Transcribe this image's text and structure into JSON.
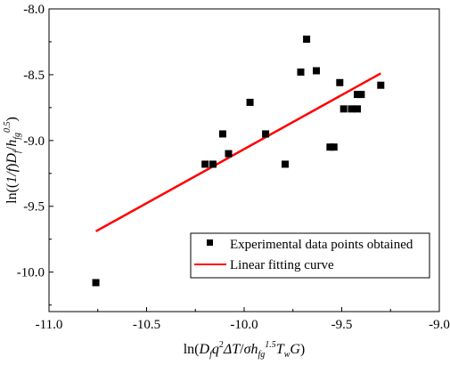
{
  "chart_data": {
    "type": "scatter",
    "xlabel_html": "ln(D<tspan font-style='italic'>f</tspan><tspan font-style='italic'>q</tspan><tspan baseline-shift='super' font-size='10'>2</tspan><tspan font-style='italic'>ΔT</tspan>/<tspan font-style='italic'>σh</tspan><tspan baseline-shift='sub' font-size='10' font-style='italic'>fg</tspan><tspan baseline-shift='super' font-size='10' font-style='italic'>1.5</tspan><tspan font-style='italic'>T</tspan><tspan baseline-shift='sub' font-size='10' font-style='italic'>w</tspan><tspan font-style='italic'>G</tspan>)",
    "xlabel": "ln(Dfq2ΔT/σhfg1.5TwG)",
    "ylabel": "ln((1/f)Df/hfg0.5)",
    "xlim": [
      -11.0,
      -9.0
    ],
    "ylim": [
      -10.3,
      -8.0
    ],
    "xticks": [
      -11.0,
      -10.5,
      -10.0,
      -9.5,
      -9.0
    ],
    "xtick_labels": [
      "-11.0",
      "-10.5",
      "-10.0",
      "-9.5",
      "-9.0"
    ],
    "yticks": [
      -8.0,
      -8.5,
      -9.0,
      -9.5,
      -10.0
    ],
    "ytick_labels": [
      "-8.0",
      "-8.5",
      "-9.0",
      "-9.5",
      "-10.0"
    ],
    "series": [
      {
        "name": "Experimental data points obtained",
        "kind": "scatter",
        "color": "#000000",
        "points": [
          [
            -10.76,
            -10.08
          ],
          [
            -10.2,
            -9.18
          ],
          [
            -10.16,
            -9.18
          ],
          [
            -10.11,
            -8.95
          ],
          [
            -10.08,
            -9.1
          ],
          [
            -9.97,
            -8.71
          ],
          [
            -9.89,
            -8.95
          ],
          [
            -9.79,
            -9.18
          ],
          [
            -9.71,
            -8.48
          ],
          [
            -9.68,
            -8.23
          ],
          [
            -9.63,
            -8.47
          ],
          [
            -9.56,
            -9.05
          ],
          [
            -9.54,
            -9.05
          ],
          [
            -9.51,
            -8.56
          ],
          [
            -9.49,
            -8.76
          ],
          [
            -9.45,
            -8.76
          ],
          [
            -9.42,
            -8.76
          ],
          [
            -9.42,
            -8.65
          ],
          [
            -9.4,
            -8.65
          ],
          [
            -9.3,
            -8.58
          ]
        ]
      },
      {
        "name": "Linear fitting curve",
        "kind": "line",
        "color": "#ff0000",
        "points": [
          [
            -10.76,
            -9.69
          ],
          [
            -9.3,
            -8.49
          ]
        ]
      }
    ],
    "legend_position": "bottom-right",
    "grid": false
  }
}
